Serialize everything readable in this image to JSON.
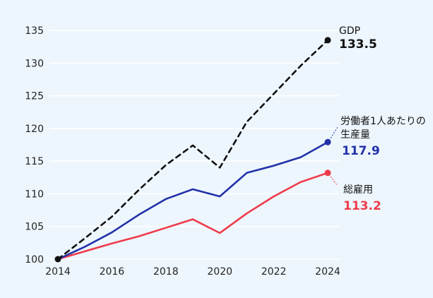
{
  "chart_data": {
    "type": "line",
    "x": [
      2014,
      2015,
      2016,
      2017,
      2018,
      2019,
      2020,
      2021,
      2022,
      2023,
      2024
    ],
    "xticks": [
      2014,
      2016,
      2018,
      2020,
      2022,
      2024
    ],
    "yticks": [
      100,
      105,
      110,
      115,
      120,
      125,
      130,
      135
    ],
    "xlim": [
      2014,
      2024
    ],
    "ylim": [
      100,
      135
    ],
    "grid": true,
    "series": [
      {
        "name": "GDP",
        "value_label": "133.5",
        "color": "#111111",
        "style": "dashed",
        "values": [
          100.0,
          103.2,
          106.5,
          110.6,
          114.4,
          117.4,
          114.0,
          121.0,
          125.3,
          129.6,
          133.5
        ]
      },
      {
        "name": "労働者1人あたりの生産量",
        "name_lines": [
          "労働者1人あたりの",
          "生産量"
        ],
        "value_label": "117.9",
        "color": "#2231a8",
        "style": "solid",
        "values": [
          100.0,
          101.9,
          104.1,
          106.8,
          109.2,
          110.7,
          109.6,
          113.2,
          114.3,
          115.6,
          117.9
        ]
      },
      {
        "name": "総雇用",
        "value_label": "113.2",
        "color": "#ee3b4b",
        "style": "solid",
        "values": [
          100.0,
          101.2,
          102.4,
          103.5,
          104.8,
          106.1,
          104.0,
          107.0,
          109.6,
          111.8,
          113.2
        ]
      }
    ]
  }
}
